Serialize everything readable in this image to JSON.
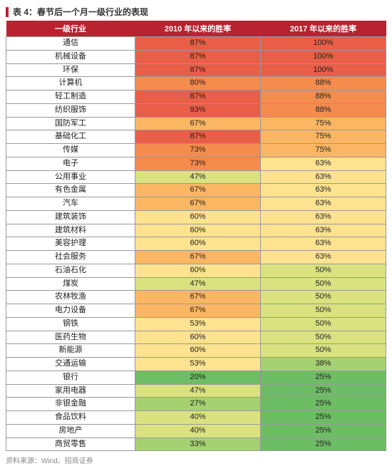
{
  "title": "表 4：春节后一个月一级行业的表现",
  "columns": [
    "一级行业",
    "2010 年以来的胜率",
    "2017 年以来的胜率"
  ],
  "footer": "资料来源：Wind、招商证券",
  "heat_palette": {
    "high": "#ea5d47",
    "midhigh": "#f58b4d",
    "mid": "#fbb664",
    "midlow": "#fde28f",
    "lowmid": "#d9e27f",
    "low": "#a6d171",
    "lowest": "#6cbd63"
  },
  "rows": [
    {
      "name": "通信",
      "v1": "87%",
      "c1": "high",
      "v2": "100%",
      "c2": "high"
    },
    {
      "name": "机械设备",
      "v1": "87%",
      "c1": "high",
      "v2": "100%",
      "c2": "high"
    },
    {
      "name": "环保",
      "v1": "87%",
      "c1": "high",
      "v2": "100%",
      "c2": "high"
    },
    {
      "name": "计算机",
      "v1": "80%",
      "c1": "midhigh",
      "v2": "88%",
      "c2": "midhigh"
    },
    {
      "name": "轻工制造",
      "v1": "87%",
      "c1": "high",
      "v2": "88%",
      "c2": "midhigh"
    },
    {
      "name": "纺织服饰",
      "v1": "93%",
      "c1": "high",
      "v2": "88%",
      "c2": "midhigh"
    },
    {
      "name": "国防军工",
      "v1": "67%",
      "c1": "mid",
      "v2": "75%",
      "c2": "mid"
    },
    {
      "name": "基础化工",
      "v1": "87%",
      "c1": "high",
      "v2": "75%",
      "c2": "mid"
    },
    {
      "name": "传媒",
      "v1": "73%",
      "c1": "midhigh",
      "v2": "75%",
      "c2": "mid"
    },
    {
      "name": "电子",
      "v1": "73%",
      "c1": "midhigh",
      "v2": "63%",
      "c2": "midlow"
    },
    {
      "name": "公用事业",
      "v1": "47%",
      "c1": "lowmid",
      "v2": "63%",
      "c2": "midlow"
    },
    {
      "name": "有色金属",
      "v1": "67%",
      "c1": "mid",
      "v2": "63%",
      "c2": "midlow"
    },
    {
      "name": "汽车",
      "v1": "67%",
      "c1": "mid",
      "v2": "63%",
      "c2": "midlow"
    },
    {
      "name": "建筑装饰",
      "v1": "60%",
      "c1": "midlow",
      "v2": "63%",
      "c2": "midlow"
    },
    {
      "name": "建筑材料",
      "v1": "60%",
      "c1": "midlow",
      "v2": "63%",
      "c2": "midlow"
    },
    {
      "name": "美容护理",
      "v1": "60%",
      "c1": "midlow",
      "v2": "63%",
      "c2": "midlow"
    },
    {
      "name": "社会服务",
      "v1": "67%",
      "c1": "mid",
      "v2": "63%",
      "c2": "midlow"
    },
    {
      "name": "石油石化",
      "v1": "60%",
      "c1": "midlow",
      "v2": "50%",
      "c2": "lowmid"
    },
    {
      "name": "煤炭",
      "v1": "47%",
      "c1": "lowmid",
      "v2": "50%",
      "c2": "lowmid"
    },
    {
      "name": "农林牧渔",
      "v1": "67%",
      "c1": "mid",
      "v2": "50%",
      "c2": "lowmid"
    },
    {
      "name": "电力设备",
      "v1": "67%",
      "c1": "mid",
      "v2": "50%",
      "c2": "lowmid"
    },
    {
      "name": "钢铁",
      "v1": "53%",
      "c1": "midlow",
      "v2": "50%",
      "c2": "lowmid"
    },
    {
      "name": "医药生物",
      "v1": "60%",
      "c1": "midlow",
      "v2": "50%",
      "c2": "lowmid"
    },
    {
      "name": "新能源",
      "v1": "60%",
      "c1": "midlow",
      "v2": "50%",
      "c2": "lowmid"
    },
    {
      "name": "交通运输",
      "v1": "53%",
      "c1": "midlow",
      "v2": "38%",
      "c2": "low"
    },
    {
      "name": "银行",
      "v1": "20%",
      "c1": "lowest",
      "v2": "25%",
      "c2": "lowest"
    },
    {
      "name": "家用电器",
      "v1": "47%",
      "c1": "lowmid",
      "v2": "25%",
      "c2": "lowest"
    },
    {
      "name": "非银金融",
      "v1": "27%",
      "c1": "low",
      "v2": "25%",
      "c2": "lowest"
    },
    {
      "name": "食品饮料",
      "v1": "40%",
      "c1": "lowmid",
      "v2": "25%",
      "c2": "lowest"
    },
    {
      "name": "房地产",
      "v1": "40%",
      "c1": "lowmid",
      "v2": "25%",
      "c2": "lowest"
    },
    {
      "name": "商贸零售",
      "v1": "33%",
      "c1": "low",
      "v2": "25%",
      "c2": "lowest"
    }
  ]
}
